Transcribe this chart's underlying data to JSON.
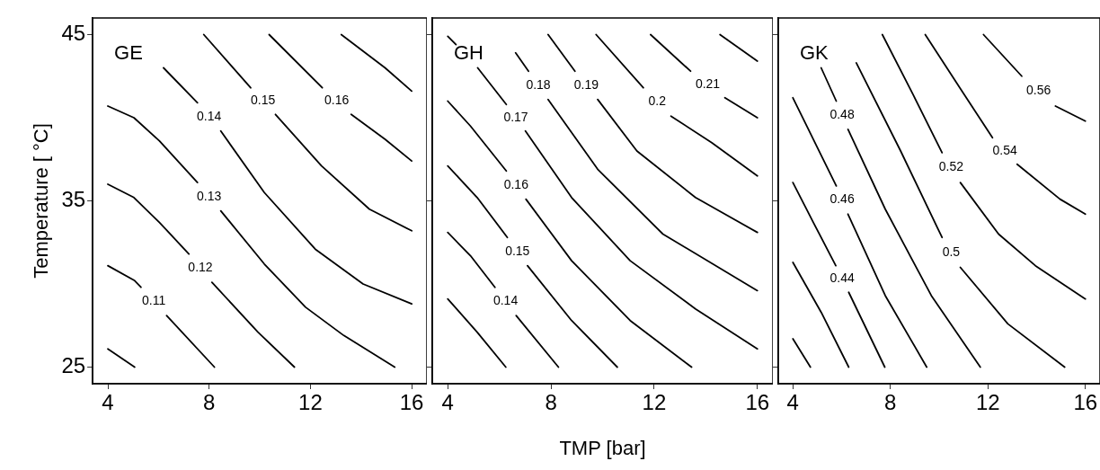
{
  "chart_data": [
    {
      "type": "line",
      "title": "GE",
      "ylabel": "Temperature [ °C]",
      "xlim": [
        3.4,
        16.6
      ],
      "ylim": [
        24,
        46
      ],
      "xticks": [
        4,
        8,
        12,
        16
      ],
      "yticks": [
        25,
        35,
        45
      ],
      "marker": "none",
      "line_style": "solid",
      "grid": false,
      "legend": false,
      "series": [
        {
          "color": "#000000",
          "x": [
            4,
            5.06
          ],
          "values": [
            26.1,
            25
          ]
        },
        {
          "name": "0.11",
          "color": "#000000",
          "x": [
            4,
            5.06,
            5.31,
            5.78,
            6.32,
            8.21
          ],
          "values": [
            31.1,
            30.2,
            29.8,
            null,
            28.1,
            25
          ]
        },
        {
          "name": "0.12",
          "color": "#000000",
          "x": [
            4,
            5.03,
            6.04,
            7.2,
            7.61,
            8.11,
            9.93,
            11.37
          ],
          "values": [
            36,
            35.2,
            33.7,
            31.8,
            null,
            30.1,
            27.1,
            25
          ]
        },
        {
          "name": "0.13",
          "color": "#000000",
          "x": [
            4,
            5.03,
            6.04,
            7.54,
            7.98,
            8.46,
            10.18,
            11.81,
            13.32,
            15.33
          ],
          "values": [
            40.7,
            40,
            38.6,
            36.1,
            null,
            34.4,
            31.2,
            28.6,
            26.9,
            25
          ]
        },
        {
          "name": "0.14",
          "color": "#000000",
          "x": [
            6.2,
            7.54,
            7.98,
            8.46,
            10.18,
            12.19,
            14.08,
            16
          ],
          "values": [
            43,
            40.9,
            null,
            39.2,
            35.5,
            32.1,
            30,
            28.8
          ]
        },
        {
          "name": "0.15",
          "color": "#000000",
          "x": [
            7.79,
            9.64,
            10.08,
            10.62,
            12.44,
            14.33,
            16
          ],
          "values": [
            45,
            41.8,
            null,
            40.2,
            37.1,
            34.5,
            33.2
          ]
        },
        {
          "name": "0.16",
          "color": "#000000",
          "x": [
            10.37,
            12.47,
            13.01,
            13.61,
            14.95,
            16
          ],
          "values": [
            45,
            41.8,
            null,
            40.2,
            38.7,
            37.4
          ]
        },
        {
          "color": "#000000",
          "x": [
            13.22,
            14.95,
            16
          ],
          "values": [
            45,
            43,
            41.6
          ]
        }
      ]
    },
    {
      "type": "line",
      "title": "GH",
      "xlabel": "TMP [bar]",
      "xlim": [
        3.4,
        16.6
      ],
      "ylim": [
        24,
        46
      ],
      "xticks": [
        4,
        8,
        12,
        16
      ],
      "yticks": [
        25,
        35,
        45
      ],
      "tick_labels": "x",
      "marker": "none",
      "line_style": "solid",
      "grid": false,
      "legend": false,
      "series": [
        {
          "color": "#000000",
          "x": [
            4,
            5.14,
            6.25
          ],
          "values": [
            29.1,
            27.1,
            25
          ]
        },
        {
          "name": "0.14",
          "color": "#000000",
          "x": [
            4,
            4.88,
            5.83,
            6.21,
            6.65,
            8.29
          ],
          "values": [
            33.1,
            31.7,
            29.8,
            null,
            28.1,
            25
          ]
        },
        {
          "name": "0.15",
          "color": "#000000",
          "x": [
            4,
            5.14,
            6.31,
            6.68,
            7.09,
            8.8,
            10.57
          ],
          "values": [
            37.1,
            35.2,
            32.8,
            null,
            31.1,
            27.8,
            25
          ]
        },
        {
          "name": "0.16",
          "color": "#000000",
          "x": [
            4,
            4.88,
            6.27,
            6.65,
            7.03,
            8.8,
            11.07,
            13.45
          ],
          "values": [
            41,
            39.5,
            36.8,
            null,
            35.1,
            31.4,
            27.8,
            25
          ]
        },
        {
          "name": "0.17",
          "color": "#000000",
          "x": [
            5.16,
            6.27,
            6.63,
            7.01,
            8.8,
            11.07,
            13.6,
            16
          ],
          "values": [
            43,
            40.8,
            null,
            39.2,
            35.2,
            31.4,
            28.5,
            26.1
          ]
        },
        {
          "color": "#000000",
          "x": [
            4,
            4.32
          ],
          "values": [
            44.9,
            44.4
          ]
        },
        {
          "name": "0.18",
          "color": "#000000",
          "x": [
            6.63,
            7.13,
            7.47,
            7.89,
            9.81,
            12.34,
            16
          ],
          "values": [
            43.9,
            42.8,
            null,
            41.1,
            36.9,
            33,
            29.6
          ]
        },
        {
          "name": "0.19",
          "color": "#000000",
          "x": [
            7.89,
            8.93,
            9.37,
            9.81,
            11.33,
            13.6,
            16
          ],
          "values": [
            45,
            42.8,
            null,
            41.1,
            38,
            35.2,
            33.1
          ]
        },
        {
          "name": "0.2",
          "color": "#000000",
          "x": [
            9.75,
            11.58,
            12.11,
            12.65,
            14.23,
            16
          ],
          "values": [
            45,
            41.8,
            null,
            40.1,
            38.5,
            36.5
          ]
        },
        {
          "name": "0.21",
          "color": "#000000",
          "x": [
            11.86,
            13.41,
            14.04,
            14.74,
            16
          ],
          "values": [
            45,
            42.8,
            null,
            41.2,
            40
          ]
        },
        {
          "color": "#000000",
          "x": [
            14.55,
            16
          ],
          "values": [
            45,
            43.4
          ]
        }
      ]
    },
    {
      "type": "line",
      "title": "GK",
      "xlim": [
        3.4,
        16.6
      ],
      "ylim": [
        24,
        46
      ],
      "xticks": [
        4,
        8,
        12,
        16
      ],
      "yticks": [
        25,
        35,
        45
      ],
      "tick_labels": "x",
      "marker": "none",
      "line_style": "solid",
      "grid": false,
      "legend": false,
      "series": [
        {
          "color": "#000000",
          "x": [
            4,
            4.72
          ],
          "values": [
            26.7,
            25
          ]
        },
        {
          "color": "#000000",
          "x": [
            4,
            5.16,
            6.29
          ],
          "values": [
            31.3,
            28.3,
            25
          ]
        },
        {
          "name": "0.44",
          "color": "#000000",
          "x": [
            4,
            4.84,
            5.76,
            6.01,
            6.29,
            7.77
          ],
          "values": [
            36.1,
            33.7,
            31.1,
            null,
            29.5,
            25
          ]
        },
        {
          "name": "0.46",
          "color": "#000000",
          "x": [
            4,
            4.84,
            5.78,
            6.01,
            6.26,
            7.79,
            9.49
          ],
          "values": [
            41.2,
            38.7,
            35.9,
            null,
            34.2,
            29.3,
            25
          ]
        },
        {
          "name": "0.48",
          "color": "#000000",
          "x": [
            5.16,
            5.78,
            6.01,
            6.26,
            7.79,
            9.68,
            11.69
          ],
          "values": [
            43,
            41,
            null,
            39.3,
            34.5,
            29.3,
            25
          ]
        },
        {
          "name": "0.5",
          "color": "#000000",
          "x": [
            6.6,
            8.42,
            10.12,
            10.5,
            10.87,
            12.82,
            15.15
          ],
          "values": [
            43.3,
            38,
            32.8,
            null,
            31,
            27.6,
            25
          ]
        },
        {
          "name": "0.52",
          "color": "#000000",
          "x": [
            7.67,
            8.93,
            10.12,
            10.31,
            10.87,
            12.44,
            13.95,
            16
          ],
          "values": [
            45,
            41.4,
            37.9,
            null,
            36.1,
            33,
            31.1,
            29.1
          ]
        },
        {
          "name": "0.54",
          "color": "#000000",
          "x": [
            9.43,
            10.94,
            12.19,
            12.63,
            13.2,
            14.96,
            16
          ],
          "values": [
            45,
            41.6,
            38.8,
            null,
            37.2,
            35.1,
            34.2
          ]
        },
        {
          "name": "0.56",
          "color": "#000000",
          "x": [
            11.82,
            13.39,
            14.02,
            14.77,
            16
          ],
          "values": [
            45,
            42.5,
            null,
            40.7,
            39.8
          ]
        }
      ]
    }
  ]
}
